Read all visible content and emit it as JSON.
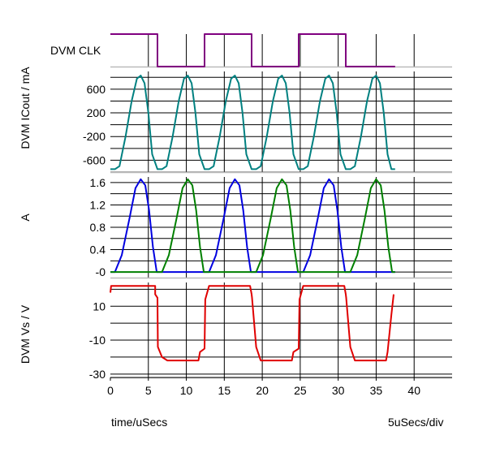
{
  "chart_data": [
    {
      "type": "line",
      "title": "",
      "ylabel": "DVM CLK",
      "xlim": [
        0,
        45
      ],
      "ylim": [
        0,
        1
      ],
      "series": [
        {
          "name": "",
          "color": "#800080",
          "x": [
            0,
            6.2,
            6.2,
            12.4,
            12.4,
            18.6,
            18.6,
            24.8,
            24.8,
            31,
            31,
            37.5
          ],
          "y": [
            1,
            1,
            0,
            0,
            1,
            1,
            0,
            0,
            1,
            1,
            0,
            0
          ]
        }
      ]
    },
    {
      "type": "line",
      "title": "",
      "ylabel": "DVM ICout / mA",
      "xlim": [
        0,
        45
      ],
      "ylim": [
        -800,
        900
      ],
      "yticks": [
        600,
        200,
        -200,
        -600
      ],
      "series": [
        {
          "name": "",
          "color": "#008080",
          "x": [
            0,
            0.6,
            1.2,
            2.0,
            2.8,
            3.5,
            4.0,
            4.5,
            5.0,
            5.5,
            6.2,
            6.8,
            7.4,
            8.2,
            9.0,
            9.7,
            10.2,
            10.7,
            11.2,
            11.7,
            12.4,
            13.0,
            13.6,
            14.4,
            15.2,
            15.9,
            16.4,
            16.9,
            17.4,
            17.9,
            18.6,
            19.2,
            19.8,
            20.6,
            21.4,
            22.1,
            22.6,
            23.1,
            23.6,
            24.1,
            24.8,
            25.4,
            26.0,
            26.8,
            27.6,
            28.3,
            28.8,
            29.3,
            29.8,
            30.3,
            31.0,
            31.6,
            32.2,
            33.0,
            33.8,
            34.5,
            35.0,
            35.5,
            36.0,
            36.5,
            37.0,
            37.5
          ],
          "y": [
            -750,
            -750,
            -700,
            -200,
            400,
            780,
            830,
            700,
            200,
            -500,
            -750,
            -750,
            -700,
            -200,
            400,
            780,
            830,
            700,
            200,
            -500,
            -750,
            -750,
            -700,
            -200,
            400,
            780,
            830,
            700,
            200,
            -500,
            -750,
            -750,
            -700,
            -200,
            400,
            780,
            830,
            700,
            200,
            -500,
            -750,
            -750,
            -700,
            -200,
            400,
            780,
            830,
            700,
            200,
            -500,
            -750,
            -750,
            -700,
            -200,
            400,
            780,
            830,
            700,
            200,
            -500,
            -750,
            -750
          ]
        }
      ]
    },
    {
      "type": "line",
      "title": "",
      "ylabel": "A",
      "xlim": [
        0,
        45
      ],
      "ylim": [
        -0.1,
        1.7
      ],
      "yticks": [
        1.6,
        1.2,
        0.8,
        0.4,
        0
      ],
      "ytick_labels": [
        "1.6",
        "1.2",
        "0.8",
        "0.4",
        "-0"
      ],
      "series": [
        {
          "name": "",
          "color": "#0000e0",
          "x": [
            0,
            0.6,
            1.5,
            2.5,
            3.3,
            4.0,
            4.6,
            5.1,
            5.6,
            6.1,
            12.4,
            13.0,
            13.9,
            14.9,
            15.7,
            16.4,
            17.0,
            17.5,
            18.0,
            18.5,
            24.8,
            25.4,
            26.3,
            27.3,
            28.1,
            28.8,
            29.4,
            29.9,
            30.4,
            30.9,
            37.5
          ],
          "y": [
            0,
            0,
            0.3,
            0.95,
            1.5,
            1.66,
            1.55,
            1.1,
            0.45,
            0,
            0,
            0,
            0.3,
            0.95,
            1.5,
            1.66,
            1.55,
            1.1,
            0.45,
            0,
            0,
            0,
            0.3,
            0.95,
            1.5,
            1.66,
            1.55,
            1.1,
            0.45,
            0,
            0
          ]
        },
        {
          "name": "",
          "color": "#008000",
          "x": [
            0,
            6.2,
            6.8,
            7.7,
            8.7,
            9.5,
            10.2,
            10.8,
            11.3,
            11.8,
            12.3,
            18.6,
            19.2,
            20.1,
            21.1,
            21.9,
            22.6,
            23.2,
            23.7,
            24.2,
            24.7,
            31.0,
            31.6,
            32.5,
            33.5,
            34.3,
            35.0,
            35.6,
            36.1,
            36.6,
            37.1,
            37.5
          ],
          "y": [
            0,
            0,
            0,
            0.3,
            0.95,
            1.5,
            1.66,
            1.55,
            1.1,
            0.45,
            0,
            0,
            0,
            0.3,
            0.95,
            1.5,
            1.66,
            1.55,
            1.1,
            0.45,
            0,
            0,
            0,
            0.3,
            0.95,
            1.5,
            1.66,
            1.55,
            1.1,
            0.45,
            0,
            0
          ]
        }
      ]
    },
    {
      "type": "line",
      "title": "",
      "ylabel": "DVM Vs / V",
      "xlim": [
        0,
        45
      ],
      "ylim": [
        -32,
        24
      ],
      "yticks": [
        10,
        -10,
        -30
      ],
      "xticks": [
        0,
        5,
        10,
        15,
        20,
        25,
        30,
        35,
        40
      ],
      "xlabel": "time/uSecs",
      "xscale_label": "5uSecs/div",
      "series": [
        {
          "name": "",
          "color": "#e00000",
          "x": [
            0,
            0.1,
            5.9,
            5.9,
            6.2,
            6.25,
            6.8,
            7.5,
            11.6,
            11.8,
            12.4,
            12.5,
            13.0,
            18.4,
            18.6,
            18.65,
            19.2,
            19.8,
            23.9,
            24.1,
            24.8,
            24.9,
            25.4,
            30.8,
            31.0,
            31.05,
            31.6,
            32.2,
            36.3,
            36.5,
            37.0,
            37.3
          ],
          "y": [
            18,
            22,
            22,
            17,
            15,
            -14,
            -20,
            -22,
            -22,
            -17,
            -15,
            14,
            22,
            22,
            17,
            15,
            -14,
            -22,
            -22,
            -17,
            -15,
            14,
            22,
            22,
            17,
            15,
            -14,
            -22,
            -22,
            -17,
            5,
            17
          ]
        }
      ]
    }
  ]
}
